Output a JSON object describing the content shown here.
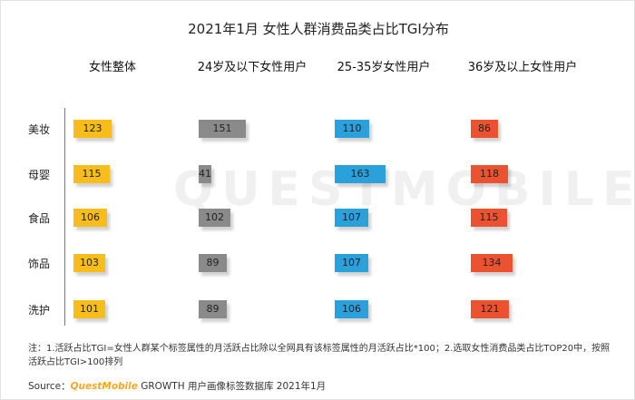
{
  "title": "2021年1月 女性人群消费品类占比TGI分布",
  "watermark": "QUESTMOBILE",
  "colors": {
    "整体": "#f7bd1b",
    "24岁及以下": "#8a8a8a",
    "25-35岁": "#2ba1dc",
    "36岁及以上": "#ec5230"
  },
  "chart_data": {
    "type": "bar",
    "orientation": "horizontal",
    "categories": [
      "美妆",
      "母婴",
      "食品",
      "饰品",
      "洗护"
    ],
    "series": [
      {
        "name": "女性整体",
        "values": [
          123,
          115,
          106,
          103,
          101
        ]
      },
      {
        "name": "24岁及以下女性用户",
        "values": [
          151,
          41,
          102,
          89,
          89
        ]
      },
      {
        "name": "25-35岁女性用户",
        "values": [
          110,
          163,
          107,
          107,
          106
        ]
      },
      {
        "name": "36岁及以上女性用户",
        "values": [
          86,
          118,
          115,
          134,
          121
        ]
      }
    ]
  },
  "note": "注：1.活跃占比TGI=女性人群某个标签属性的月活跃占比除以全网具有该标签属性的月活跃占比*100；2.选取女性消费品类占比TOP20中，按照活跃占比TGI>100排列",
  "source": {
    "prefix": "Source：",
    "brand": "QuestMobile",
    "text": " GROWTH 用户画像标签数据库 2021年1月"
  }
}
